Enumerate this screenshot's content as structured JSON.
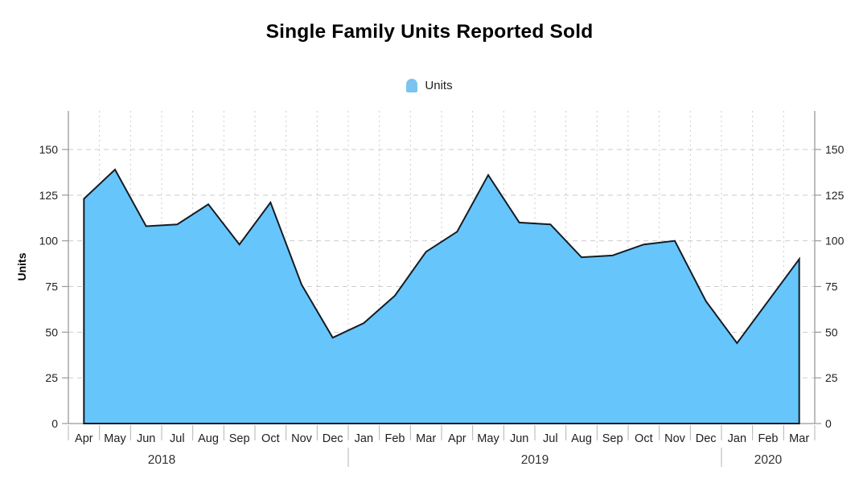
{
  "chart_data": {
    "type": "area",
    "title": "Single Family Units Reported Sold",
    "ylabel": "Units",
    "xlabel": "",
    "legend": {
      "label": "Units",
      "position": "top-center"
    },
    "grid": true,
    "ylim": [
      0,
      171
    ],
    "yticks": [
      0,
      25,
      50,
      75,
      100,
      125,
      150
    ],
    "categories": [
      "Apr",
      "May",
      "Jun",
      "Jul",
      "Aug",
      "Sep",
      "Oct",
      "Nov",
      "Dec",
      "Jan",
      "Feb",
      "Mar",
      "Apr",
      "May",
      "Jun",
      "Jul",
      "Aug",
      "Sep",
      "Oct",
      "Nov",
      "Dec",
      "Jan",
      "Feb",
      "Mar"
    ],
    "years": [
      {
        "label": "2018",
        "start_index": 0,
        "end_index": 8
      },
      {
        "label": "2019",
        "start_index": 9,
        "end_index": 20
      },
      {
        "label": "2020",
        "start_index": 21,
        "end_index": 23
      }
    ],
    "series": [
      {
        "name": "Units",
        "values": [
          123,
          139,
          108,
          109,
          120,
          98,
          121,
          76,
          47,
          55,
          70,
          94,
          105,
          136,
          110,
          109,
          91,
          92,
          98,
          100,
          67,
          44,
          67,
          90
        ]
      }
    ],
    "colors": {
      "area_fill": "#66c6fc",
      "area_stroke": "#161b22",
      "legend_marker": "#7cc3f0",
      "grid": "#cccccc",
      "axis": "#999999",
      "tick": "#b3b3b3",
      "text": "#1f1f1f",
      "year_text": "#333333"
    }
  }
}
